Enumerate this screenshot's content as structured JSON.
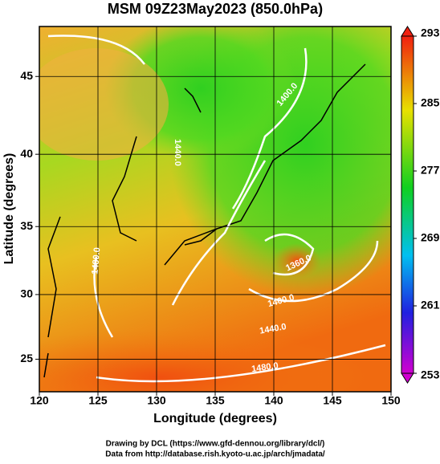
{
  "chart_data": {
    "type": "map",
    "title": "MSM 09Z23May2023 (850.0hPa)",
    "xlabel": "Longitude (degrees)",
    "ylabel": "Latitude  (degrees)",
    "projection": "mercator",
    "xlim": [
      120,
      150
    ],
    "ylim": [
      22.4,
      48
    ],
    "xticks": [
      120,
      125,
      130,
      135,
      140,
      145,
      150
    ],
    "yticks": [
      25,
      30,
      35,
      40,
      45
    ],
    "grid": true,
    "colorbar": {
      "lim": [
        253,
        293
      ],
      "ticks": [
        253,
        261,
        269,
        277,
        285,
        293
      ]
    },
    "contour_labels": [
      "1400.0",
      "1400.0",
      "1440.0",
      "1480.0",
      "1360.0",
      "1440.0",
      "1480.0"
    ],
    "footer": [
      "Drawing by DCL (https://www.gfd-dennou.org/library/dcl/)",
      "Data from http://database.rish.kyoto-u.ac.jp/arch/jmadata/"
    ]
  }
}
